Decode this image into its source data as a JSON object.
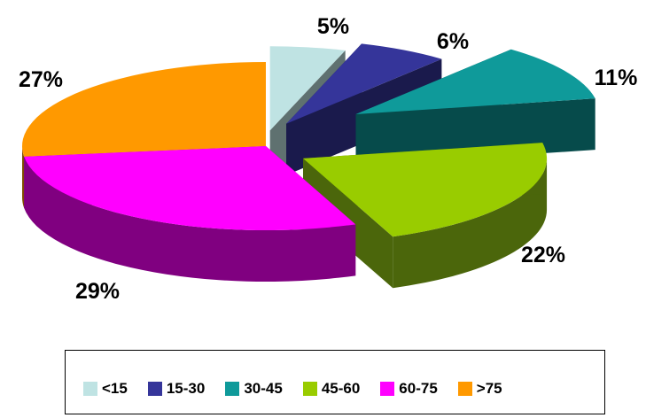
{
  "chart_data": {
    "type": "pie",
    "style": "3d-exploded",
    "categories": [
      "<15",
      "15-30",
      "30-45",
      "45-60",
      "60-75",
      ">75"
    ],
    "values": [
      5,
      6,
      11,
      22,
      29,
      27
    ],
    "data_labels": [
      "5%",
      "6%",
      "11%",
      "22%",
      "29%",
      "27%"
    ],
    "unit": "%",
    "legend_position": "bottom",
    "colors": {
      "top": [
        "#bfe3e3",
        "#35359a",
        "#0f9a9a",
        "#99cc00",
        "#ff00ff",
        "#ff9900"
      ],
      "side": [
        "#5f7170",
        "#1a1a4c",
        "#064b4b",
        "#4b660b",
        "#800080",
        "#7f4c00"
      ]
    }
  }
}
